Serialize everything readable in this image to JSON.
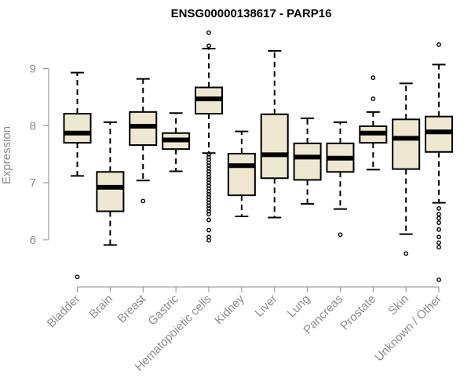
{
  "chart_data": {
    "type": "boxplot",
    "title": "ENSG00000138617 - PARP16",
    "xlabel": "",
    "ylabel": "Expression",
    "ylim": [
      5.2,
      9.7
    ],
    "yticks": [
      6,
      7,
      8,
      9
    ],
    "grid": false,
    "legend": "none",
    "box_fill": "#efe8d0",
    "categories": [
      "Bladder",
      "Brain",
      "Breast",
      "Gastric",
      "Hematopoietic cells",
      "Kidney",
      "Liver",
      "Lung",
      "Pancreas",
      "Prostate",
      "Skin",
      "Unknown / Other"
    ],
    "boxes": [
      {
        "category": "Bladder",
        "whisker_low": 7.12,
        "q1": 7.7,
        "median": 7.87,
        "q3": 8.21,
        "whisker_high": 8.93,
        "outliers": [
          5.35
        ]
      },
      {
        "category": "Brain",
        "whisker_low": 5.91,
        "q1": 6.5,
        "median": 6.92,
        "q3": 7.19,
        "whisker_high": 8.06,
        "outliers": []
      },
      {
        "category": "Breast",
        "whisker_low": 7.04,
        "q1": 7.66,
        "median": 7.99,
        "q3": 8.24,
        "whisker_high": 8.82,
        "outliers": [
          6.68
        ]
      },
      {
        "category": "Gastric",
        "whisker_low": 7.2,
        "q1": 7.59,
        "median": 7.75,
        "q3": 7.87,
        "whisker_high": 8.22,
        "outliers": []
      },
      {
        "category": "Hematopoietic cells",
        "whisker_low": 7.52,
        "q1": 8.21,
        "median": 8.47,
        "q3": 8.67,
        "whisker_high": 9.35,
        "outliers": [
          9.4,
          9.63,
          7.5,
          7.45,
          7.4,
          7.35,
          7.3,
          7.25,
          7.2,
          7.15,
          7.1,
          7.05,
          7.0,
          6.95,
          6.9,
          6.85,
          6.8,
          6.75,
          6.7,
          6.65,
          6.6,
          6.55,
          6.5,
          6.45,
          6.35,
          6.17,
          6.05,
          5.99
        ]
      },
      {
        "category": "Kidney",
        "whisker_low": 6.41,
        "q1": 6.78,
        "median": 7.3,
        "q3": 7.51,
        "whisker_high": 7.9,
        "outliers": []
      },
      {
        "category": "Liver",
        "whisker_low": 6.39,
        "q1": 7.08,
        "median": 7.49,
        "q3": 8.2,
        "whisker_high": 9.31,
        "outliers": []
      },
      {
        "category": "Lung",
        "whisker_low": 6.63,
        "q1": 7.05,
        "median": 7.45,
        "q3": 7.69,
        "whisker_high": 8.13,
        "outliers": []
      },
      {
        "category": "Pancreas",
        "whisker_low": 6.54,
        "q1": 7.19,
        "median": 7.43,
        "q3": 7.69,
        "whisker_high": 8.06,
        "outliers": [
          6.09
        ]
      },
      {
        "category": "Prostate",
        "whisker_low": 7.23,
        "q1": 7.7,
        "median": 7.87,
        "q3": 7.99,
        "whisker_high": 8.24,
        "outliers": [
          8.47,
          8.84
        ]
      },
      {
        "category": "Skin",
        "whisker_low": 6.1,
        "q1": 7.24,
        "median": 7.78,
        "q3": 8.11,
        "whisker_high": 8.74,
        "outliers": [
          5.76
        ]
      },
      {
        "category": "Unknown / Other",
        "whisker_low": 6.65,
        "q1": 7.54,
        "median": 7.89,
        "q3": 8.16,
        "whisker_high": 9.07,
        "outliers": [
          9.42,
          6.55,
          6.45,
          6.38,
          6.3,
          6.18,
          6.05,
          5.95,
          5.87,
          5.3
        ]
      }
    ]
  }
}
